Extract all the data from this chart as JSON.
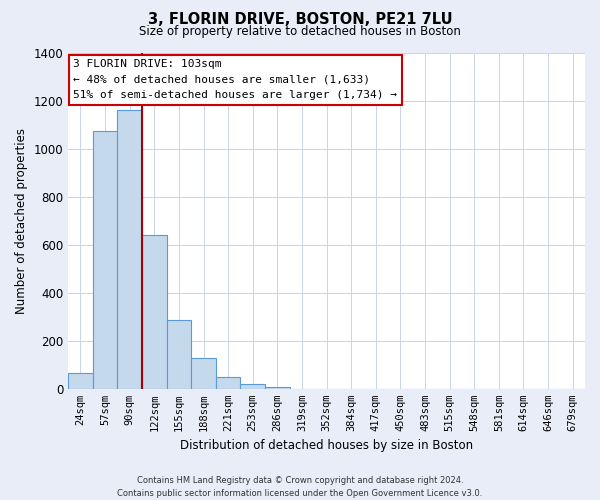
{
  "title": "3, FLORIN DRIVE, BOSTON, PE21 7LU",
  "subtitle": "Size of property relative to detached houses in Boston",
  "xlabel": "Distribution of detached houses by size in Boston",
  "ylabel": "Number of detached properties",
  "bar_labels": [
    "24sqm",
    "57sqm",
    "90sqm",
    "122sqm",
    "155sqm",
    "188sqm",
    "221sqm",
    "253sqm",
    "286sqm",
    "319sqm",
    "352sqm",
    "384sqm",
    "417sqm",
    "450sqm",
    "483sqm",
    "515sqm",
    "548sqm",
    "581sqm",
    "614sqm",
    "646sqm",
    "679sqm"
  ],
  "bar_values": [
    65,
    1075,
    1160,
    640,
    285,
    130,
    48,
    20,
    8,
    0,
    0,
    0,
    0,
    0,
    0,
    0,
    0,
    0,
    0,
    0,
    0
  ],
  "bar_fill_color": "#c5d9ed",
  "bar_edge_color": "#5b9bd5",
  "vline_color": "#aa0000",
  "vline_pos": 2.5,
  "ylim": [
    0,
    1400
  ],
  "yticks": [
    0,
    200,
    400,
    600,
    800,
    1000,
    1200,
    1400
  ],
  "annotation_title": "3 FLORIN DRIVE: 103sqm",
  "annotation_line1": "← 48% of detached houses are smaller (1,633)",
  "annotation_line2": "51% of semi-detached houses are larger (1,734) →",
  "annotation_box_color": "#ffffff",
  "annotation_box_edge": "#cc0000",
  "footer_line1": "Contains HM Land Registry data © Crown copyright and database right 2024.",
  "footer_line2": "Contains public sector information licensed under the Open Government Licence v3.0.",
  "background_color": "#e8edf8",
  "plot_bg_color": "#ffffff",
  "grid_color": "#c8d4e8"
}
